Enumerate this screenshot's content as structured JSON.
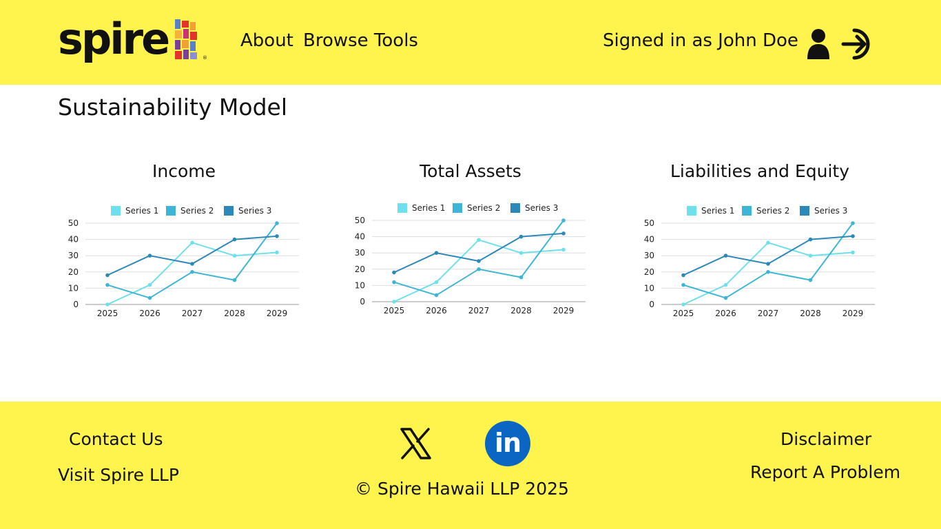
{
  "header": {
    "logo_text": "spire",
    "logo_reg": "®",
    "nav": [
      {
        "label": "About"
      },
      {
        "label": "Browse Tools"
      }
    ],
    "signed_in_text": "Signed in as John Doe",
    "user_icon": "user-icon",
    "signout_icon": "sign-in-icon",
    "colors": {
      "background": "#fff34d"
    }
  },
  "page": {
    "title": "Sustainability Model"
  },
  "chart_data": [
    {
      "type": "line",
      "title": "Income",
      "categories": [
        "2025",
        "2026",
        "2027",
        "2028",
        "2029"
      ],
      "ylim": [
        0,
        50
      ],
      "yticks": [
        "0",
        "10",
        "20",
        "30",
        "40",
        "50"
      ],
      "legend": "top",
      "series": [
        {
          "name": "Series 1",
          "color": "#6ee0eb",
          "values": [
            0,
            12,
            38,
            30,
            32
          ]
        },
        {
          "name": "Series 2",
          "color": "#3db5d6",
          "values": [
            12,
            4,
            20,
            15,
            50
          ]
        },
        {
          "name": "Series 3",
          "color": "#2b88b8",
          "values": [
            18,
            30,
            25,
            40,
            42
          ]
        }
      ]
    },
    {
      "type": "line",
      "title": "Total Assets",
      "categories": [
        "2025",
        "2026",
        "2027",
        "2028",
        "2029"
      ],
      "ylim": [
        0,
        50
      ],
      "yticks": [
        "0",
        "10",
        "20",
        "30",
        "40",
        "50"
      ],
      "legend": "top",
      "series": [
        {
          "name": "Series 1",
          "color": "#6ee0eb",
          "values": [
            0,
            12,
            38,
            30,
            32
          ]
        },
        {
          "name": "Series 2",
          "color": "#3db5d6",
          "values": [
            12,
            4,
            20,
            15,
            50
          ]
        },
        {
          "name": "Series 3",
          "color": "#2b88b8",
          "values": [
            18,
            30,
            25,
            40,
            42
          ]
        }
      ]
    },
    {
      "type": "line",
      "title": "Liabilities and Equity",
      "categories": [
        "2025",
        "2026",
        "2027",
        "2028",
        "2029"
      ],
      "ylim": [
        0,
        50
      ],
      "yticks": [
        "0",
        "10",
        "20",
        "30",
        "40",
        "50"
      ],
      "legend": "top",
      "series": [
        {
          "name": "Series 1",
          "color": "#6ee0eb",
          "values": [
            0,
            12,
            38,
            30,
            32
          ]
        },
        {
          "name": "Series 2",
          "color": "#3db5d6",
          "values": [
            12,
            4,
            20,
            15,
            50
          ]
        },
        {
          "name": "Series 3",
          "color": "#2b88b8",
          "values": [
            18,
            30,
            25,
            40,
            42
          ]
        }
      ]
    }
  ],
  "footer": {
    "contact_us": "Contact Us",
    "visit_spire": "Visit Spire LLP",
    "x_icon": "x-twitter-icon",
    "linkedin_icon": "linkedin-icon",
    "linkedin_text": "in",
    "copyright": "© Spire Hawaii LLP 2025",
    "disclaimer": "Disclaimer",
    "report_problem": "Report A Problem"
  }
}
